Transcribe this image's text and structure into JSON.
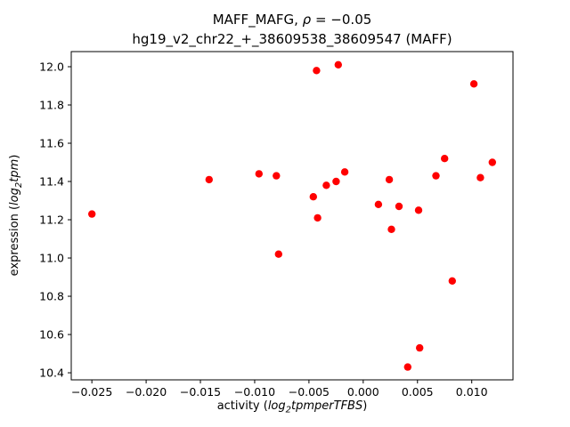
{
  "figure": {
    "background": "#ffffff",
    "frame_color": "#000000"
  },
  "chart_data": {
    "type": "scatter",
    "title": "MAFF_MAFG, ρ = −0.05",
    "subtitle": "hg19_v2_chr22_+_38609538_38609547 (MAFF)",
    "title_parts": {
      "prefix": "MAFF_MAFG, ",
      "rho": "ρ",
      "equals_value": " = −0.05",
      "line2": "hg19_v2_chr22_+_38609538_38609547 (MAFF)"
    },
    "xlabel": "activity (log2tpmperTFBS)",
    "xlabel_parts": {
      "prefix": "activity (",
      "log": "log",
      "sub": "2",
      "rest": "tpmperTFBS",
      "suffix": ")"
    },
    "ylabel": "expression (log2tpm)",
    "ylabel_parts": {
      "prefix": "expression (",
      "log": "log",
      "sub": "2",
      "rest": "tpm",
      "suffix": ")"
    },
    "xlim": [
      -0.0269,
      0.0138
    ],
    "ylim": [
      10.363,
      12.079
    ],
    "x_ticks": [
      -0.025,
      -0.02,
      -0.015,
      -0.01,
      -0.005,
      0.0,
      0.005,
      0.01
    ],
    "x_tick_labels": [
      "−0.025",
      "−0.020",
      "−0.015",
      "−0.010",
      "−0.005",
      "0.000",
      "0.005",
      "0.010"
    ],
    "y_ticks": [
      10.4,
      10.6,
      10.8,
      11.0,
      11.2,
      11.4,
      11.6,
      11.8,
      12.0
    ],
    "y_tick_labels": [
      "10.4",
      "10.6",
      "10.8",
      "11.0",
      "11.2",
      "11.4",
      "11.6",
      "11.8",
      "12.0"
    ],
    "grid": false,
    "marker_color": "#ff0000",
    "marker_radius": 4.2,
    "points": [
      [
        -0.025,
        11.23
      ],
      [
        -0.0142,
        11.41
      ],
      [
        -0.0096,
        11.44
      ],
      [
        -0.008,
        11.43
      ],
      [
        -0.0078,
        11.02
      ],
      [
        -0.0046,
        11.32
      ],
      [
        -0.0043,
        11.98
      ],
      [
        -0.0042,
        11.21
      ],
      [
        -0.0034,
        11.38
      ],
      [
        -0.0025,
        11.4
      ],
      [
        -0.0023,
        12.01
      ],
      [
        -0.0017,
        11.45
      ],
      [
        0.0014,
        11.28
      ],
      [
        0.0024,
        11.41
      ],
      [
        0.0026,
        11.15
      ],
      [
        0.0033,
        11.27
      ],
      [
        0.0041,
        10.43
      ],
      [
        0.0051,
        11.25
      ],
      [
        0.0052,
        10.53
      ],
      [
        0.0067,
        11.43
      ],
      [
        0.0075,
        11.52
      ],
      [
        0.0082,
        10.88
      ],
      [
        0.0102,
        11.91
      ],
      [
        0.0108,
        11.42
      ],
      [
        0.0119,
        11.5
      ]
    ]
  }
}
